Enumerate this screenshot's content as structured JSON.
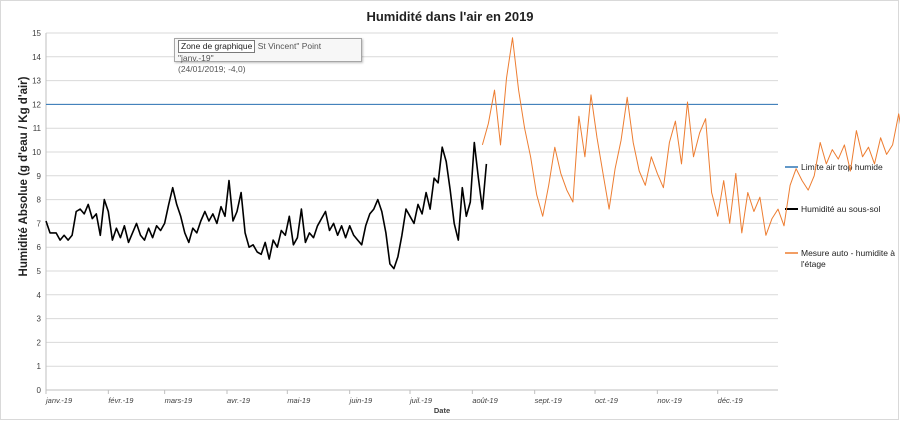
{
  "chart_data": {
    "type": "line",
    "title": "Humidité dans l'air en 2019",
    "xlabel": "Date",
    "ylabel": "Humidité Absolue  (g d'eau / Kg d'air)",
    "ylim": [
      0,
      15
    ],
    "yticks": [
      "0",
      "1",
      "2",
      "3",
      "4",
      "5",
      "6",
      "7",
      "8",
      "9",
      "10",
      "11",
      "12",
      "13",
      "14",
      "15"
    ],
    "x_start": "2019-01-01",
    "x_end": "2019-12-31",
    "xticks": [
      {
        "date": "2019-01-01",
        "label": "janv.-19"
      },
      {
        "date": "2019-02-01",
        "label": "févr.-19"
      },
      {
        "date": "2019-03-01",
        "label": "mars-19"
      },
      {
        "date": "2019-04-01",
        "label": "avr.-19"
      },
      {
        "date": "2019-05-01",
        "label": "mai-19"
      },
      {
        "date": "2019-06-01",
        "label": "juin-19"
      },
      {
        "date": "2019-07-01",
        "label": "juil.-19"
      },
      {
        "date": "2019-08-01",
        "label": "août-19"
      },
      {
        "date": "2019-09-01",
        "label": "sept.-19"
      },
      {
        "date": "2019-10-01",
        "label": "oct.-19"
      },
      {
        "date": "2019-11-01",
        "label": "nov.-19"
      },
      {
        "date": "2019-12-01",
        "label": "déc.-19"
      }
    ],
    "grid": true,
    "legend_position": "right",
    "series": [
      {
        "name": "Limite air trop humide",
        "color": "#2e75b6",
        "points": [
          [
            "2019-01-01",
            12
          ],
          [
            "2019-12-31",
            12
          ]
        ]
      },
      {
        "name": "Humidité au sous-sol",
        "color": "#000000",
        "points": [
          [
            "2019-01-01",
            7.1
          ],
          [
            "2019-01-03",
            6.6
          ],
          [
            "2019-01-06",
            6.6
          ],
          [
            "2019-01-08",
            6.3
          ],
          [
            "2019-01-10",
            6.5
          ],
          [
            "2019-01-12",
            6.3
          ],
          [
            "2019-01-14",
            6.5
          ],
          [
            "2019-01-16",
            7.5
          ],
          [
            "2019-01-18",
            7.6
          ],
          [
            "2019-01-20",
            7.4
          ],
          [
            "2019-01-22",
            7.8
          ],
          [
            "2019-01-24",
            7.2
          ],
          [
            "2019-01-26",
            7.4
          ],
          [
            "2019-01-28",
            6.5
          ],
          [
            "2019-01-30",
            8.0
          ],
          [
            "2019-02-01",
            7.5
          ],
          [
            "2019-02-03",
            6.3
          ],
          [
            "2019-02-05",
            6.8
          ],
          [
            "2019-02-07",
            6.4
          ],
          [
            "2019-02-09",
            6.9
          ],
          [
            "2019-02-11",
            6.2
          ],
          [
            "2019-02-13",
            6.6
          ],
          [
            "2019-02-15",
            7.0
          ],
          [
            "2019-02-17",
            6.5
          ],
          [
            "2019-02-19",
            6.3
          ],
          [
            "2019-02-21",
            6.8
          ],
          [
            "2019-02-23",
            6.4
          ],
          [
            "2019-02-25",
            6.9
          ],
          [
            "2019-02-27",
            6.7
          ],
          [
            "2019-03-01",
            7.0
          ],
          [
            "2019-03-03",
            7.8
          ],
          [
            "2019-03-05",
            8.5
          ],
          [
            "2019-03-07",
            7.8
          ],
          [
            "2019-03-09",
            7.3
          ],
          [
            "2019-03-11",
            6.6
          ],
          [
            "2019-03-13",
            6.2
          ],
          [
            "2019-03-15",
            6.8
          ],
          [
            "2019-03-17",
            6.6
          ],
          [
            "2019-03-19",
            7.1
          ],
          [
            "2019-03-21",
            7.5
          ],
          [
            "2019-03-23",
            7.1
          ],
          [
            "2019-03-25",
            7.4
          ],
          [
            "2019-03-27",
            7.0
          ],
          [
            "2019-03-29",
            7.7
          ],
          [
            "2019-03-31",
            7.3
          ],
          [
            "2019-04-02",
            8.8
          ],
          [
            "2019-04-04",
            7.1
          ],
          [
            "2019-04-06",
            7.5
          ],
          [
            "2019-04-08",
            8.3
          ],
          [
            "2019-04-10",
            6.6
          ],
          [
            "2019-04-12",
            6.0
          ],
          [
            "2019-04-14",
            6.1
          ],
          [
            "2019-04-16",
            5.8
          ],
          [
            "2019-04-18",
            5.7
          ],
          [
            "2019-04-20",
            6.2
          ],
          [
            "2019-04-22",
            5.5
          ],
          [
            "2019-04-24",
            6.3
          ],
          [
            "2019-04-26",
            6.0
          ],
          [
            "2019-04-28",
            6.7
          ],
          [
            "2019-04-30",
            6.5
          ],
          [
            "2019-05-02",
            7.3
          ],
          [
            "2019-05-04",
            6.1
          ],
          [
            "2019-05-06",
            6.4
          ],
          [
            "2019-05-08",
            7.6
          ],
          [
            "2019-05-10",
            6.2
          ],
          [
            "2019-05-12",
            6.6
          ],
          [
            "2019-05-14",
            6.4
          ],
          [
            "2019-05-16",
            6.9
          ],
          [
            "2019-05-18",
            7.2
          ],
          [
            "2019-05-20",
            7.5
          ],
          [
            "2019-05-22",
            6.7
          ],
          [
            "2019-05-24",
            7.0
          ],
          [
            "2019-05-26",
            6.5
          ],
          [
            "2019-05-28",
            6.9
          ],
          [
            "2019-05-30",
            6.4
          ],
          [
            "2019-06-01",
            6.9
          ],
          [
            "2019-06-03",
            6.5
          ],
          [
            "2019-06-05",
            6.3
          ],
          [
            "2019-06-07",
            6.1
          ],
          [
            "2019-06-09",
            6.9
          ],
          [
            "2019-06-11",
            7.4
          ],
          [
            "2019-06-13",
            7.6
          ],
          [
            "2019-06-15",
            8.0
          ],
          [
            "2019-06-17",
            7.5
          ],
          [
            "2019-06-19",
            6.6
          ],
          [
            "2019-06-21",
            5.3
          ],
          [
            "2019-06-23",
            5.1
          ],
          [
            "2019-06-25",
            5.6
          ],
          [
            "2019-06-27",
            6.5
          ],
          [
            "2019-06-29",
            7.6
          ],
          [
            "2019-07-01",
            7.3
          ],
          [
            "2019-07-03",
            7.0
          ],
          [
            "2019-07-05",
            7.8
          ],
          [
            "2019-07-07",
            7.4
          ],
          [
            "2019-07-09",
            8.3
          ],
          [
            "2019-07-11",
            7.6
          ],
          [
            "2019-07-13",
            8.9
          ],
          [
            "2019-07-15",
            8.7
          ],
          [
            "2019-07-17",
            10.2
          ],
          [
            "2019-07-19",
            9.6
          ],
          [
            "2019-07-21",
            8.4
          ],
          [
            "2019-07-23",
            7.0
          ],
          [
            "2019-07-25",
            6.3
          ],
          [
            "2019-07-27",
            8.5
          ],
          [
            "2019-07-29",
            7.3
          ],
          [
            "2019-07-31",
            7.9
          ],
          [
            "2019-08-02",
            10.4
          ],
          [
            "2019-08-04",
            8.9
          ],
          [
            "2019-08-06",
            7.6
          ],
          [
            "2019-08-08",
            9.5
          ]
        ]
      },
      {
        "name": "Mesure auto - humidite à l'étage",
        "color": "#ed7d31",
        "points": [
          [
            "2019-08-06",
            10.3
          ],
          [
            "2019-08-09",
            11.2
          ],
          [
            "2019-08-12",
            12.6
          ],
          [
            "2019-08-15",
            10.3
          ],
          [
            "2019-08-18",
            13.1
          ],
          [
            "2019-08-21",
            14.8
          ],
          [
            "2019-08-24",
            12.6
          ],
          [
            "2019-08-27",
            11.0
          ],
          [
            "2019-08-30",
            9.8
          ],
          [
            "2019-09-02",
            8.2
          ],
          [
            "2019-09-05",
            7.3
          ],
          [
            "2019-09-08",
            8.6
          ],
          [
            "2019-09-11",
            10.2
          ],
          [
            "2019-09-14",
            9.1
          ],
          [
            "2019-09-17",
            8.4
          ],
          [
            "2019-09-20",
            7.9
          ],
          [
            "2019-09-23",
            11.5
          ],
          [
            "2019-09-26",
            9.8
          ],
          [
            "2019-09-29",
            12.4
          ],
          [
            "2019-10-02",
            10.6
          ],
          [
            "2019-10-05",
            9.1
          ],
          [
            "2019-10-08",
            7.6
          ],
          [
            "2019-10-11",
            9.3
          ],
          [
            "2019-10-14",
            10.5
          ],
          [
            "2019-10-17",
            12.3
          ],
          [
            "2019-10-20",
            10.4
          ],
          [
            "2019-10-23",
            9.2
          ],
          [
            "2019-10-26",
            8.6
          ],
          [
            "2019-10-29",
            9.8
          ],
          [
            "2019-11-01",
            9.1
          ],
          [
            "2019-11-04",
            8.5
          ],
          [
            "2019-11-07",
            10.4
          ],
          [
            "2019-11-10",
            11.3
          ],
          [
            "2019-11-13",
            9.5
          ],
          [
            "2019-11-16",
            12.1
          ],
          [
            "2019-11-19",
            9.8
          ],
          [
            "2019-11-22",
            10.8
          ],
          [
            "2019-11-25",
            11.4
          ],
          [
            "2019-11-28",
            8.3
          ],
          [
            "2019-12-01",
            7.3
          ],
          [
            "2019-12-04",
            8.8
          ],
          [
            "2019-12-07",
            7.0
          ],
          [
            "2019-12-10",
            9.1
          ],
          [
            "2019-12-13",
            6.6
          ],
          [
            "2019-12-16",
            8.3
          ],
          [
            "2019-12-19",
            7.5
          ],
          [
            "2019-12-22",
            8.1
          ],
          [
            "2019-12-25",
            6.5
          ],
          [
            "2019-12-28",
            7.2
          ],
          [
            "2019-12-31",
            7.6
          ],
          [
            "2020-01-03",
            6.9
          ],
          [
            "2020-01-06",
            8.6
          ],
          [
            "2020-01-09",
            9.3
          ],
          [
            "2020-01-12",
            8.8
          ],
          [
            "2020-01-15",
            8.4
          ],
          [
            "2020-01-18",
            9.0
          ],
          [
            "2020-01-21",
            10.4
          ],
          [
            "2020-01-24",
            9.5
          ],
          [
            "2020-01-27",
            10.1
          ],
          [
            "2020-01-30",
            9.7
          ],
          [
            "2020-02-02",
            10.3
          ],
          [
            "2020-02-05",
            9.2
          ],
          [
            "2020-02-08",
            10.9
          ],
          [
            "2020-02-11",
            9.8
          ],
          [
            "2020-02-14",
            10.2
          ],
          [
            "2020-02-17",
            9.5
          ],
          [
            "2020-02-20",
            10.6
          ],
          [
            "2020-02-23",
            9.9
          ],
          [
            "2020-02-26",
            10.3
          ],
          [
            "2020-02-29",
            11.6
          ],
          [
            "2020-03-03",
            10.1
          ],
          [
            "2020-03-06",
            9.6
          ],
          [
            "2020-03-09",
            10.5
          ],
          [
            "2020-03-12",
            11.4
          ],
          [
            "2020-03-15",
            10.9
          ],
          [
            "2020-03-18",
            9.8
          ],
          [
            "2020-03-21",
            9.0
          ],
          [
            "2020-03-24",
            8.4
          ],
          [
            "2020-03-27",
            7.6
          ],
          [
            "2020-03-30",
            8.3
          ],
          [
            "2020-04-02",
            7.4
          ],
          [
            "2020-04-05",
            8.0
          ],
          [
            "2020-04-08",
            7.2
          ],
          [
            "2020-04-11",
            8.6
          ],
          [
            "2020-04-14",
            7.7
          ],
          [
            "2020-04-17",
            8.3
          ],
          [
            "2020-04-20",
            7.5
          ],
          [
            "2020-04-23",
            8.1
          ],
          [
            "2020-04-26",
            7.6
          ],
          [
            "2020-04-29",
            8.2
          ],
          [
            "2020-05-02",
            7.4
          ],
          [
            "2020-05-05",
            8.5
          ],
          [
            "2020-05-08",
            8.9
          ],
          [
            "2020-05-11",
            8.3
          ],
          [
            "2020-05-14",
            9.1
          ],
          [
            "2020-05-17",
            8.2
          ],
          [
            "2020-05-20",
            10.4
          ],
          [
            "2020-05-23",
            8.6
          ],
          [
            "2020-05-26",
            8.0
          ],
          [
            "2020-05-29",
            7.5
          ],
          [
            "2020-06-01",
            7.6
          ]
        ]
      }
    ]
  },
  "tooltip": {
    "box_text": "Zone de graphique",
    "line1_rest": " St Vincent\" Point \"janv.-19\"",
    "line2": "(24/01/2019; -4,0)"
  }
}
